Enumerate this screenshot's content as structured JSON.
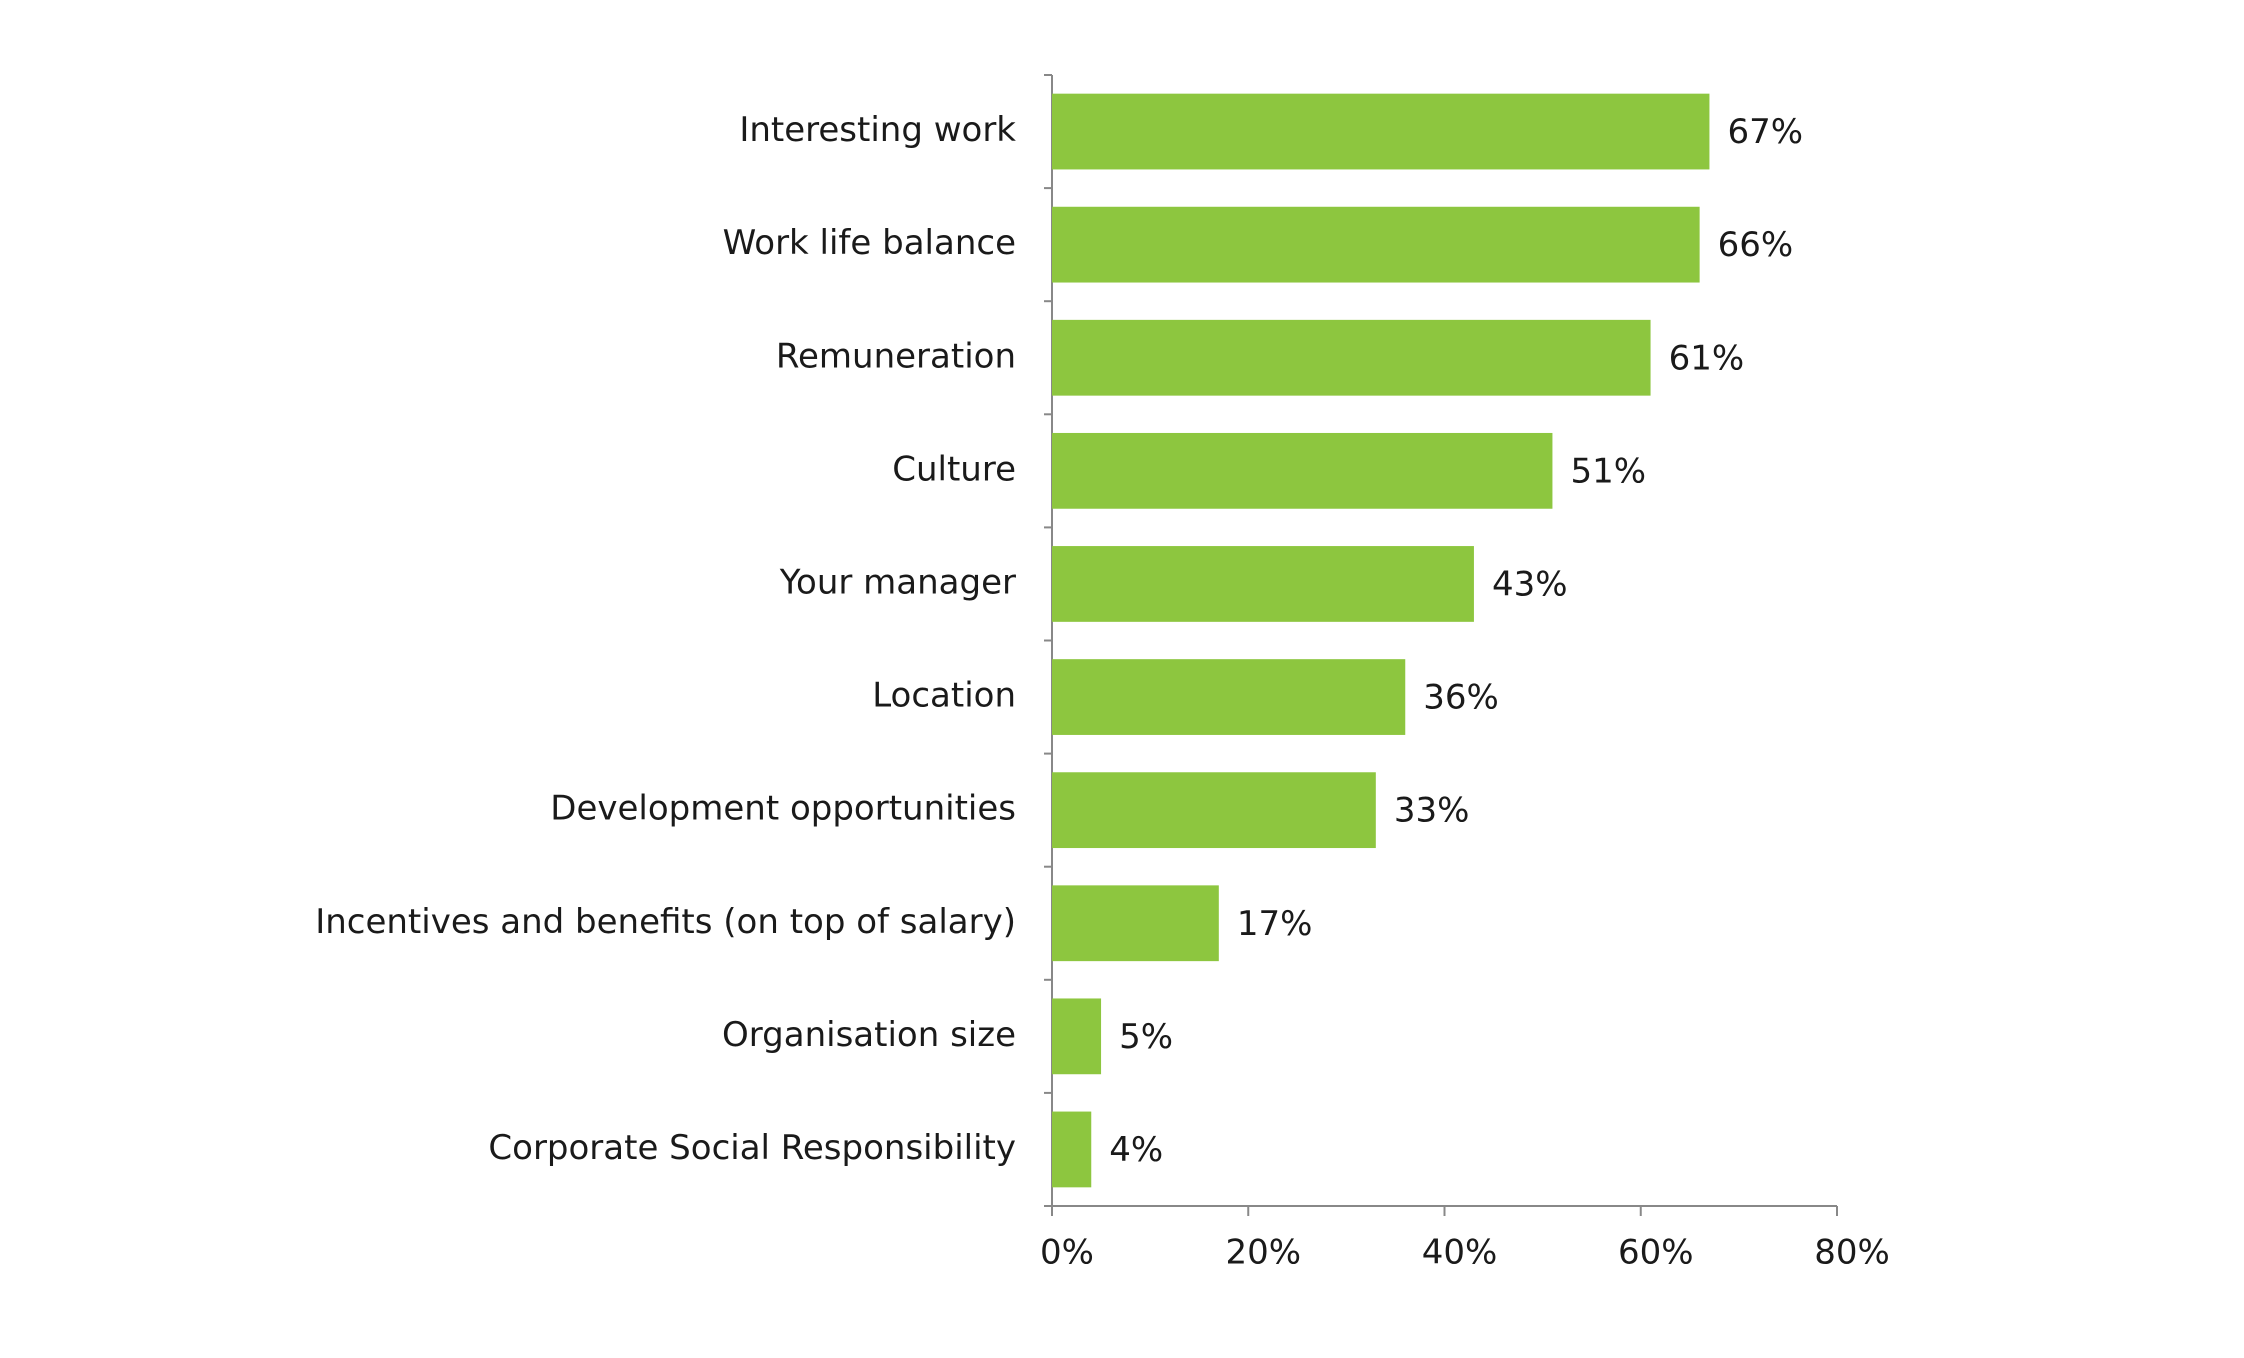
{
  "chart_data": {
    "type": "hbar",
    "categories": [
      "Interesting work",
      "Work life balance",
      "Remuneration",
      "Culture",
      "Your manager",
      "Location",
      "Development opportunities",
      "Incentives and benefits (on top of salary)",
      "Organisation size",
      "Corporate Social Responsibility"
    ],
    "values": [
      67,
      66,
      61,
      51,
      43,
      36,
      33,
      17,
      5,
      4
    ],
    "value_labels": [
      "67%",
      "66%",
      "61%",
      "51%",
      "43%",
      "36%",
      "33%",
      "17%",
      "5%",
      "4%"
    ],
    "color": "#8dc63f",
    "xlim": [
      0,
      80
    ],
    "xticks": [
      {
        "value": 0,
        "label": "0%"
      },
      {
        "value": 20,
        "label": "20%"
      },
      {
        "value": 40,
        "label": "40%"
      },
      {
        "value": 60,
        "label": "60%"
      },
      {
        "value": 80,
        "label": "80%"
      }
    ],
    "grid": false
  }
}
